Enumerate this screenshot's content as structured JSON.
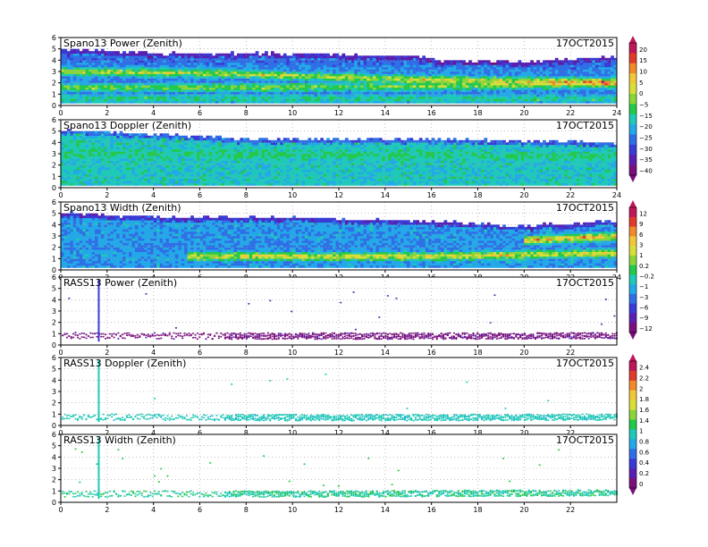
{
  "chart_data": [
    {
      "type": "heatmap",
      "title": "Spano13 Power (Zenith)",
      "date": "17OCT2015",
      "x": {
        "range": [
          0,
          24
        ],
        "ticks": [
          0,
          2,
          4,
          6,
          8,
          10,
          12,
          14,
          16,
          18,
          20,
          22,
          24
        ]
      },
      "y": {
        "range": [
          0,
          6
        ],
        "ticks": [
          0,
          1,
          2,
          3,
          4,
          5,
          6
        ]
      },
      "coverage": [
        [
          0,
          5.0,
          0.3
        ],
        [
          4.5,
          4.6,
          0.3
        ],
        [
          9,
          4.6,
          0.3
        ],
        [
          15.9,
          4.3,
          0.3
        ],
        [
          16.2,
          4.0,
          0.3
        ],
        [
          20,
          3.9,
          0.3
        ],
        [
          24,
          4.3,
          0.3
        ]
      ],
      "colorscale": "A",
      "bands": [
        {
          "x": [
            0,
            6,
            12,
            16,
            20,
            24
          ],
          "y": [
            3.0,
            2.9,
            2.5,
            2.3,
            2.2,
            2.1
          ],
          "peak": 0.68
        },
        {
          "x": [
            0,
            8,
            16,
            24
          ],
          "y": [
            1.6,
            1.6,
            1.7,
            1.9
          ],
          "peak": 0.6
        },
        {
          "x": [
            0,
            24
          ],
          "y": [
            4.1,
            3.6
          ],
          "peak": 0.25
        },
        {
          "x": [
            0,
            24
          ],
          "y": [
            0.6,
            0.6
          ],
          "peak": 0.5
        }
      ],
      "base": 0.3
    },
    {
      "type": "heatmap",
      "title": "Spano13 Doppler (Zenith)",
      "date": "17OCT2015",
      "x": {
        "range": [
          0,
          24
        ],
        "ticks": [
          0,
          2,
          4,
          6,
          8,
          10,
          12,
          14,
          16,
          18,
          20,
          22,
          24
        ]
      },
      "y": {
        "range": [
          0,
          6
        ],
        "ticks": [
          0,
          1,
          2,
          3,
          4,
          5,
          6
        ]
      },
      "coverage": [
        [
          0,
          5.1,
          0.3
        ],
        [
          4.5,
          4.7,
          0.3
        ],
        [
          8,
          4.3,
          0.3
        ],
        [
          16,
          4.3,
          0.3
        ],
        [
          24,
          4.0,
          0.3
        ]
      ],
      "colorscale": "A",
      "bands": [
        {
          "x": [
            0,
            24
          ],
          "y": [
            3.0,
            2.8
          ],
          "peak": 0.48
        }
      ],
      "base": 0.41
    },
    {
      "type": "heatmap",
      "title": "Spano13 Width (Zenith)",
      "date": "17OCT2015",
      "x": {
        "range": [
          0,
          24
        ],
        "ticks": [
          0,
          2,
          4,
          6,
          8,
          10,
          12,
          14,
          16,
          18,
          20,
          22,
          24
        ]
      },
      "y": {
        "range": [
          0,
          6
        ],
        "ticks": [
          0,
          1,
          2,
          3,
          4,
          5,
          6
        ]
      },
      "coverage": [
        [
          0,
          5.1,
          0.3
        ],
        [
          4.5,
          4.6,
          0.3
        ],
        [
          9,
          4.7,
          0.3
        ],
        [
          16,
          4.3,
          0.3
        ],
        [
          20,
          3.9,
          0.3
        ],
        [
          24,
          4.3,
          0.3
        ]
      ],
      "colorscale": "B",
      "bands": [
        {
          "x": [
            5.5,
            16,
            24
          ],
          "y": [
            1.2,
            1.2,
            1.5
          ],
          "peak": 0.72
        },
        {
          "x": [
            20,
            24
          ],
          "y": [
            2.6,
            3.0
          ],
          "peak": 0.8
        },
        {
          "x": [
            0,
            24
          ],
          "y": [
            2.2,
            2.2
          ],
          "peak": 0.3
        }
      ],
      "base": 0.33
    },
    {
      "type": "scatter",
      "title": "RASS13 Power (Zenith)",
      "date": "17OCT2015",
      "x": {
        "range": [
          0,
          24
        ],
        "ticks": [
          0,
          2,
          4,
          6,
          8,
          10,
          12,
          14,
          16,
          18,
          20,
          22
        ]
      },
      "y": {
        "range": [
          0,
          6
        ],
        "ticks": [
          0,
          1,
          2,
          3,
          4,
          5,
          6
        ]
      },
      "colorscale": "B",
      "band": [
        [
          0,
          0.9
        ],
        [
          6,
          0.85
        ],
        [
          12,
          0.85
        ],
        [
          18,
          0.85
        ],
        [
          24,
          0.9
        ]
      ],
      "spike": {
        "x": 1.6,
        "y": [
          0.3,
          5.8
        ]
      },
      "level": 0.05
    },
    {
      "type": "scatter",
      "title": "RASS13 Doppler (Zenith)",
      "date": "17OCT2015",
      "x": {
        "range": [
          0,
          24
        ],
        "ticks": [
          0,
          2,
          4,
          6,
          8,
          10,
          12,
          14,
          16,
          18,
          20,
          22
        ]
      },
      "y": {
        "range": [
          0,
          6
        ],
        "ticks": [
          0,
          1,
          2,
          3,
          4,
          5,
          6
        ]
      },
      "colorscale": "B",
      "band": [
        [
          0,
          0.8
        ],
        [
          12,
          0.75
        ],
        [
          24,
          0.8
        ]
      ],
      "spike": {
        "x": 1.6,
        "y": [
          0.3,
          5.8
        ]
      },
      "level": 0.42
    },
    {
      "type": "scatter",
      "title": "RASS13 Width (Zenith)",
      "date": "17OCT2015",
      "x": {
        "range": [
          0,
          24
        ],
        "ticks": [
          0,
          2,
          4,
          6,
          8,
          10,
          12,
          14,
          16,
          18,
          20,
          22
        ]
      },
      "y": {
        "range": [
          0,
          6
        ],
        "ticks": [
          0,
          1,
          2,
          3,
          4,
          5,
          6
        ]
      },
      "colorscale": "B",
      "band": [
        [
          0,
          0.8
        ],
        [
          12,
          0.8
        ],
        [
          24,
          0.9
        ]
      ],
      "spike": {
        "x": 1.6,
        "y": [
          0.3,
          5.8
        ]
      },
      "level": 0.45
    }
  ],
  "colorbars": [
    {
      "labels": [
        "20",
        "15",
        "10",
        "5",
        "0",
        "−5",
        "−15",
        "−20",
        "−25",
        "−30",
        "−35",
        "−40"
      ]
    },
    {
      "labels": [
        "12",
        "9",
        "6",
        "3",
        "1",
        "0.2",
        "−0.2",
        "−1",
        "−3",
        "−6",
        "−9",
        "−12"
      ]
    },
    {
      "labels": [
        "2.4",
        "2.2",
        "2",
        "1.8",
        "1.6",
        "1.4",
        "1",
        "0.8",
        "0.6",
        "0.4",
        "0.2",
        "0"
      ]
    }
  ],
  "palette": [
    "#7a0f7c",
    "#5a1fb0",
    "#3a3ad6",
    "#2f6ee6",
    "#23a8e8",
    "#1fc9b8",
    "#22c94a",
    "#8ad63a",
    "#d8df3a",
    "#f0c83a",
    "#f08a2a",
    "#e23a2a",
    "#c0175a"
  ]
}
